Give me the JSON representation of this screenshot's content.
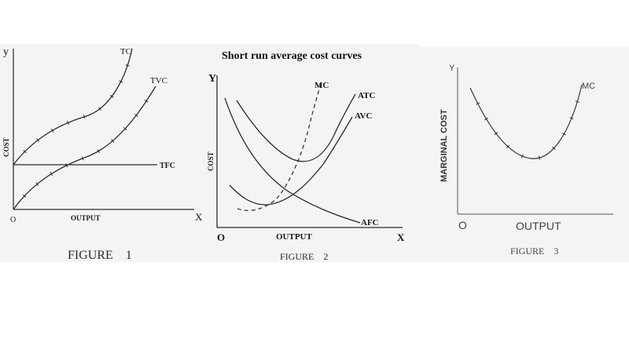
{
  "chart_data": [
    {
      "type": "line",
      "title": "",
      "caption": "FIGURE    1",
      "ylabel": "COST",
      "xlabel": "OUTPUT",
      "axis_letters": {
        "y": "y",
        "x": "X",
        "origin": "O"
      },
      "series": [
        {
          "name": "TC"
        },
        {
          "name": "TVC"
        },
        {
          "name": "TFC"
        }
      ]
    },
    {
      "type": "line",
      "title": "Short run average cost curves",
      "caption": "FIGURE    2",
      "ylabel": "COST",
      "xlabel": "OUTPUT",
      "axis_letters": {
        "y": "Y",
        "x": "X",
        "origin": "O"
      },
      "series": [
        {
          "name": "MC"
        },
        {
          "name": "ATC"
        },
        {
          "name": "AVC"
        },
        {
          "name": "AFC"
        }
      ]
    },
    {
      "type": "line",
      "title": "",
      "caption": "FIGURE    3",
      "ylabel": "MARGINAL COST",
      "xlabel": "OUTPUT",
      "axis_letters": {
        "y": "Y",
        "origin": "O"
      },
      "series": [
        {
          "name": "MC"
        }
      ]
    }
  ],
  "colors": {
    "curve": "#2a2a2a",
    "axis": "#333333",
    "panel": "#f4f4f2",
    "text": "#1a1a1a"
  }
}
